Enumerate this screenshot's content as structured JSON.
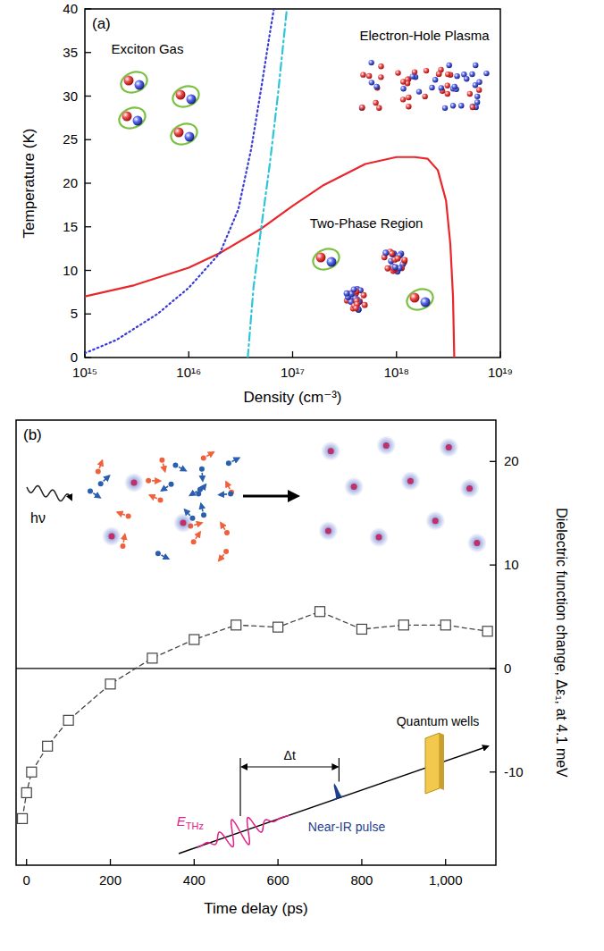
{
  "chart_data": [
    {
      "type": "line",
      "title": "(a)",
      "x_label": "Density (cm⁻³)",
      "y_label": "Temperature (K)",
      "log": "x",
      "grid": false,
      "xlim": [
        1000000000000000.0,
        1e+19
      ],
      "xticks": [
        {
          "value": 1000000000000000.0,
          "label": "10¹⁵"
        },
        {
          "value": 1e+16,
          "label": "10¹⁶"
        },
        {
          "value": 1e+17,
          "label": "10¹⁷"
        },
        {
          "value": 1e+18,
          "label": "10¹⁸"
        },
        {
          "value": 1e+19,
          "label": "10¹⁹"
        }
      ],
      "ylim": [
        0,
        40
      ],
      "yticks": [
        0,
        5,
        10,
        15,
        20,
        25,
        30,
        35,
        40
      ],
      "annotations": [
        "Exciton Gas",
        "Electron-Hole Plasma",
        "Two-Phase Region"
      ],
      "series": [
        {
          "color": "#e8262b",
          "line_style": "solid",
          "x": [
            1000000000000000.0,
            3000000000000000.0,
            1e+16,
            2e+16,
            5e+16,
            1e+17,
            2e+17,
            5e+17,
            1e+18,
            1.5e+18,
            2e+18,
            2.5e+18,
            3e+18,
            3.3e+18,
            3.5e+18,
            3.6e+18
          ],
          "values": [
            7,
            8.3,
            10.3,
            12,
            14.8,
            17.4,
            19.8,
            22.2,
            23,
            23,
            22.8,
            21.5,
            18,
            13,
            7,
            0
          ]
        },
        {
          "color": "#3a3ad8",
          "line_style": "dotted",
          "x": [
            1000000000000000.0,
            2000000000000000.0,
            5000000000000000.0,
            1e+16,
            2e+16,
            3e+16,
            4e+16,
            5e+16,
            6e+16,
            6.6e+16
          ],
          "values": [
            0.5,
            2,
            5,
            8,
            12,
            17,
            24,
            31,
            37,
            40
          ]
        },
        {
          "color": "#2cc6d6",
          "line_style": "dashdot",
          "x": [
            3.7e+16,
            4.2e+16,
            5e+16,
            6e+16,
            7.2e+16,
            8.8e+16
          ],
          "values": [
            0,
            8,
            15,
            22,
            30,
            40
          ]
        }
      ]
    },
    {
      "type": "line",
      "title": "(b)",
      "x_label": "Time delay (ps)",
      "y2_label": "Dielectric function change, Δε₁, at 4.1 meV",
      "grid": false,
      "xlim": [
        -25,
        1120
      ],
      "xticks": [
        0,
        200,
        400,
        600,
        800,
        {
          "value": 1000,
          "label": "1,000"
        }
      ],
      "y2lim": [
        -19,
        24
      ],
      "y2ticks": [
        -10,
        0,
        10,
        20
      ],
      "annotations": [
        "hν",
        "Quantum wells",
        "E",
        "THz",
        "Near-IR pulse",
        "Δt"
      ],
      "series": [
        {
          "axis": "y2",
          "color": "#444444",
          "marker": "square",
          "line_style": "dashed",
          "x": [
            -10,
            0,
            12,
            50,
            100,
            200,
            300,
            400,
            500,
            600,
            700,
            800,
            900,
            1000,
            1100
          ],
          "values": [
            -14.5,
            -12,
            -10,
            -7.5,
            -5,
            -1.5,
            1,
            2.8,
            4.2,
            4,
            5.5,
            3.8,
            4.2,
            4.2,
            3.6
          ]
        }
      ]
    }
  ]
}
